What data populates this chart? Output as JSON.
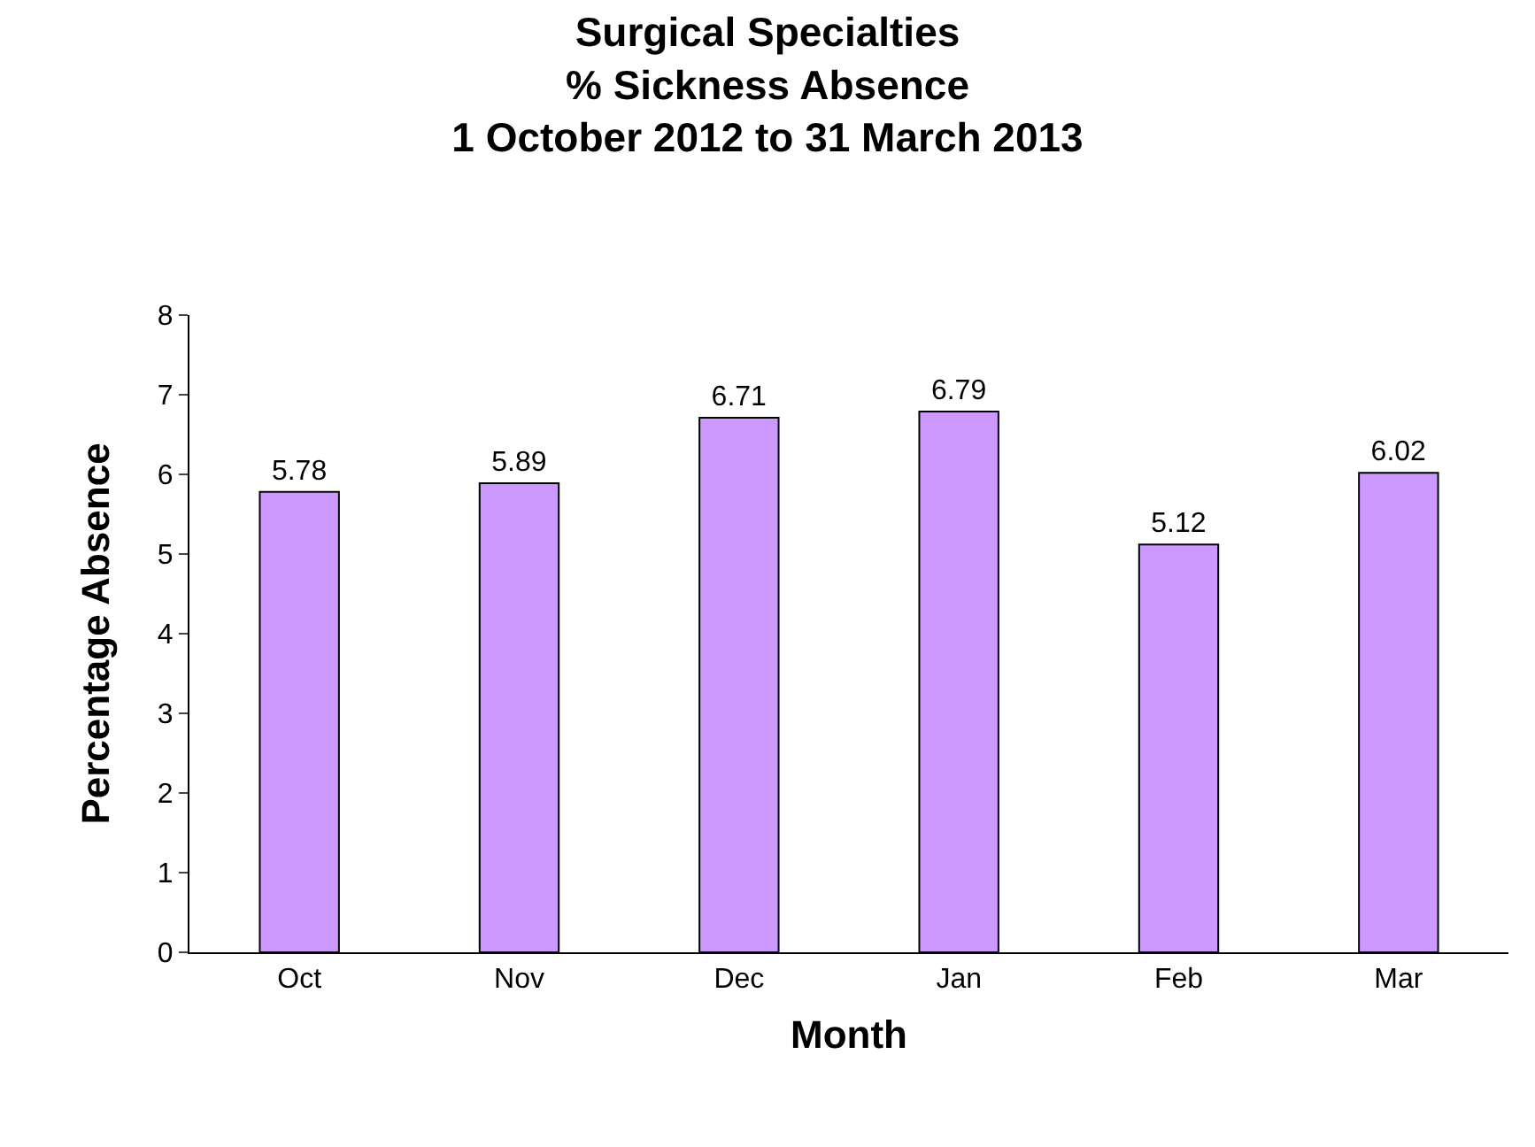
{
  "chart_data": {
    "type": "bar",
    "title": "Surgical Specialties\n% Sickness Absence\n1 October 2012 to 31 March 2013",
    "xlabel": "Month",
    "ylabel": "Percentage Absence",
    "categories": [
      "Oct",
      "Nov",
      "Dec",
      "Jan",
      "Feb",
      "Mar"
    ],
    "values": [
      5.78,
      5.89,
      6.71,
      6.79,
      5.12,
      6.02
    ],
    "color": "#cc99ff",
    "ylim": [
      0,
      8
    ],
    "yticks": [
      0,
      1,
      2,
      3,
      4,
      5,
      6,
      7,
      8
    ],
    "data_labels": true,
    "legend": false
  }
}
